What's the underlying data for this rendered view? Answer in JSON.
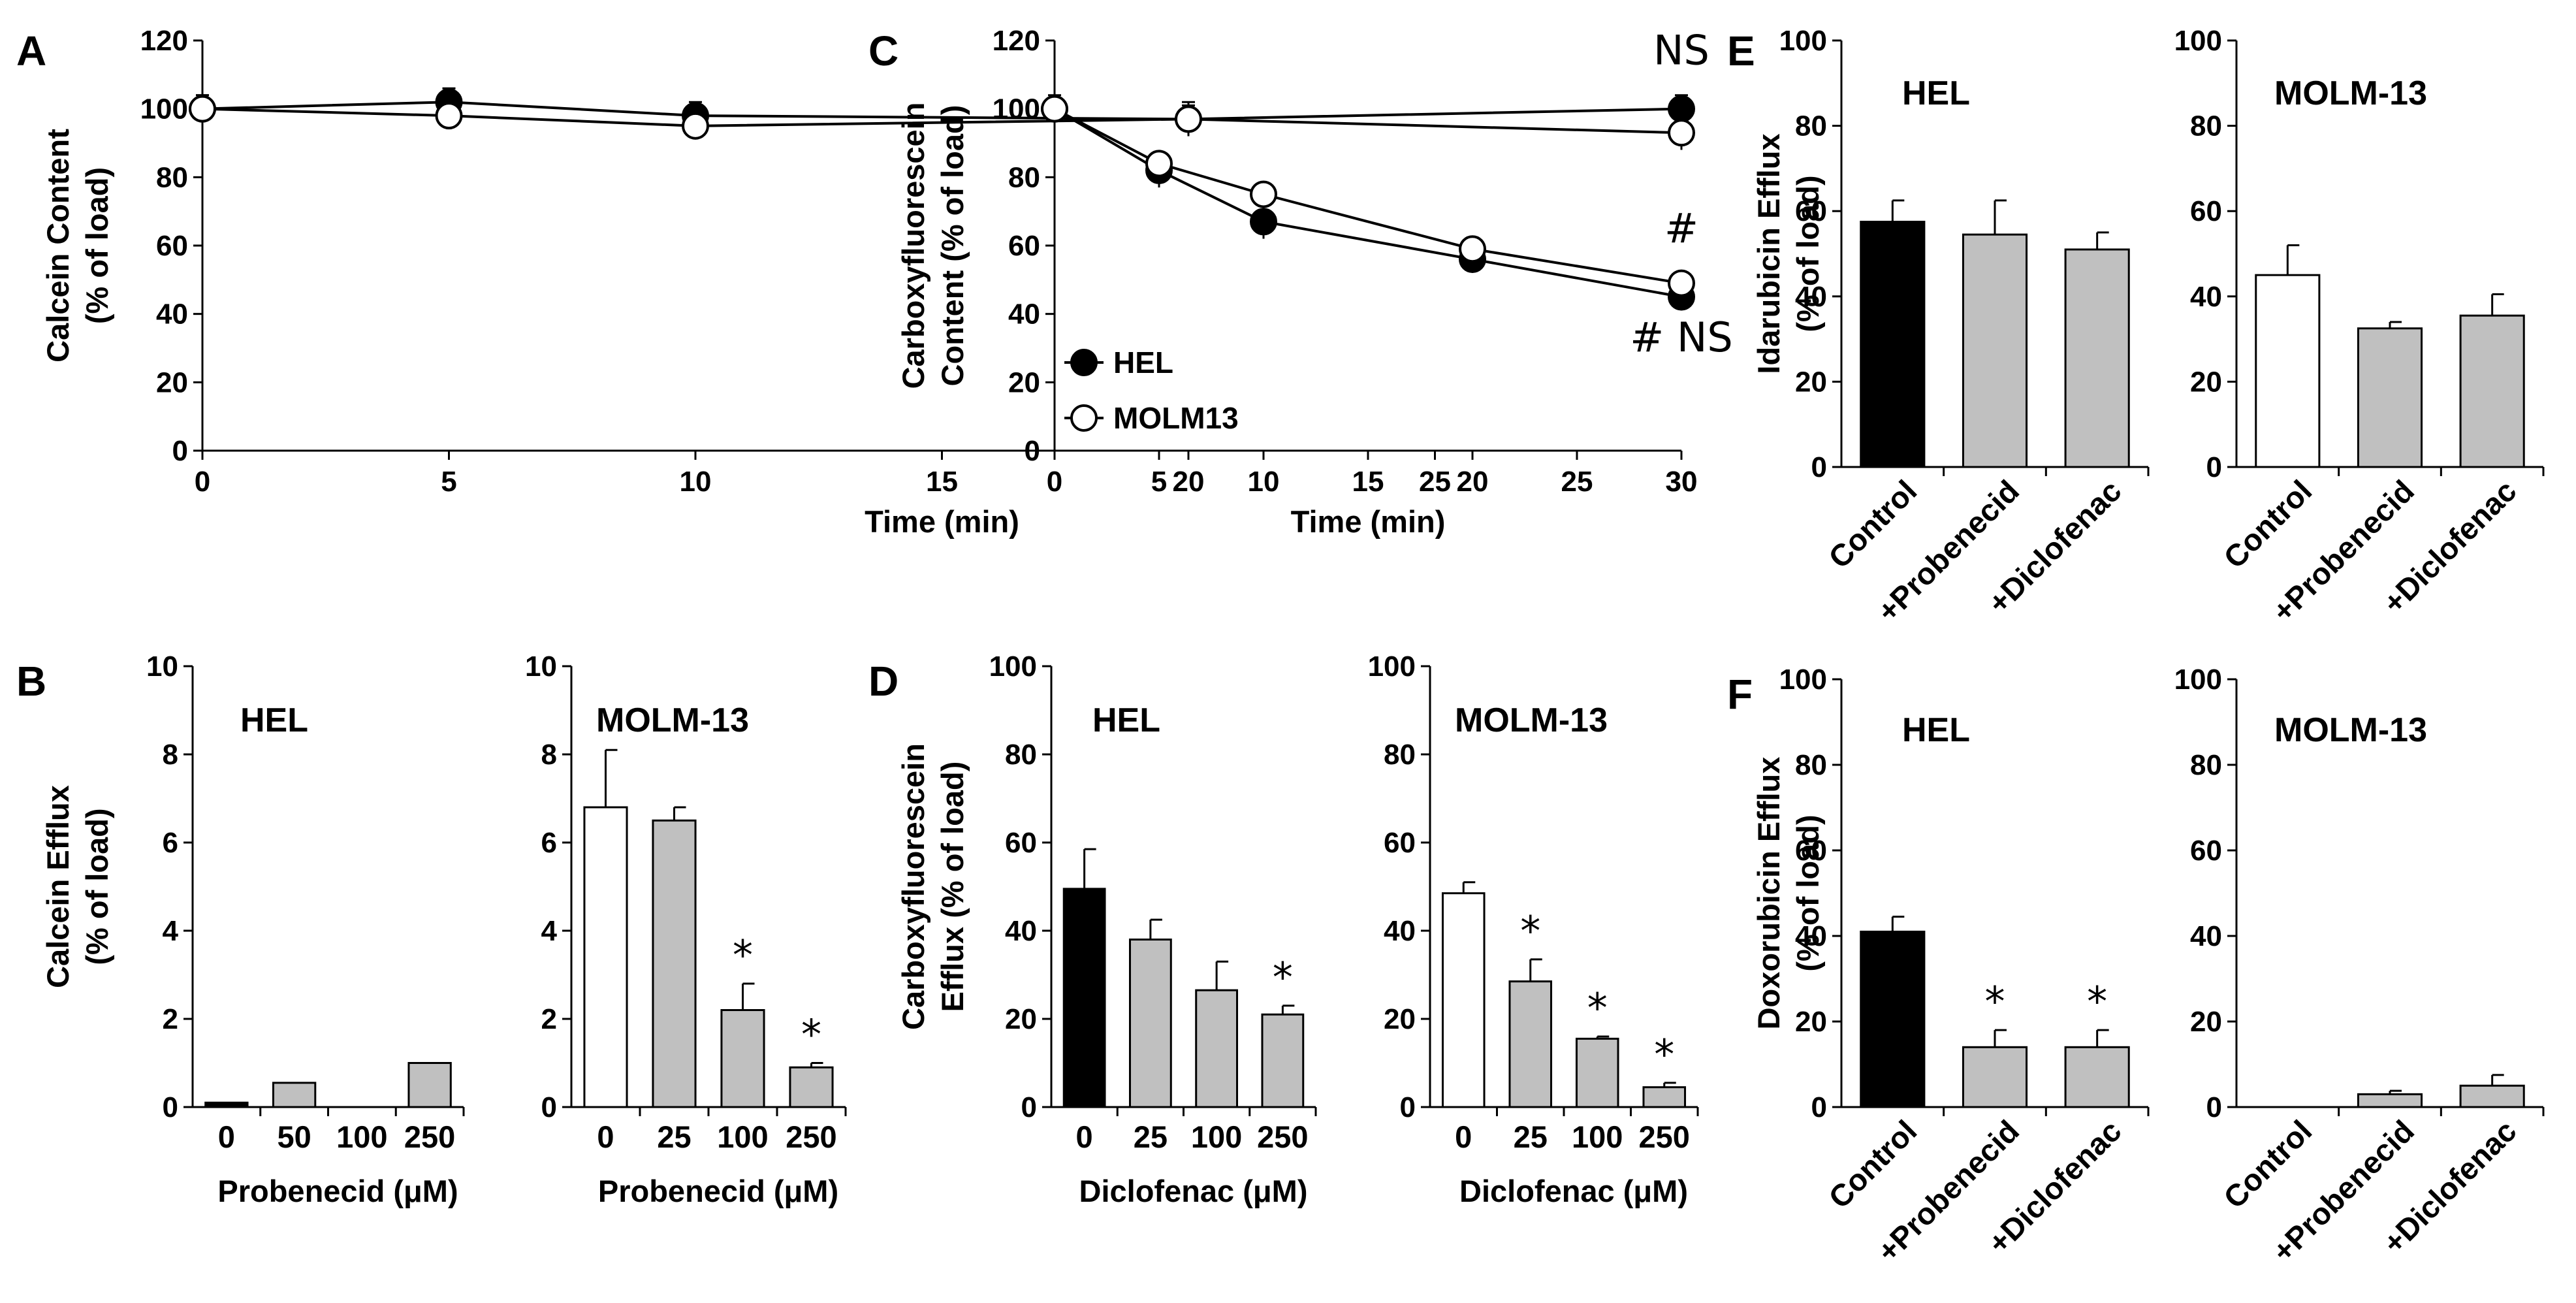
{
  "chart_data": [
    {
      "id": "A",
      "type": "line",
      "panel_label": "A",
      "xlabel": "Time (min)",
      "ylabel": [
        "Calcein Content",
        "(% of load)"
      ],
      "xlim": [
        0,
        30
      ],
      "ylim": [
        0,
        120
      ],
      "xticks": [
        0,
        5,
        10,
        15,
        20,
        25,
        30
      ],
      "yticks": [
        0,
        20,
        40,
        60,
        80,
        100,
        120
      ],
      "series": [
        {
          "name": "HEL",
          "fill": "#000000",
          "x": [
            0,
            5,
            10,
            20,
            30
          ],
          "y": [
            100,
            102,
            98,
            97,
            100
          ],
          "err": [
            4,
            4,
            4,
            4,
            4
          ]
        },
        {
          "name": "MOLM13",
          "fill": "#ffffff",
          "x": [
            0,
            5,
            10,
            20,
            30
          ],
          "y": [
            100,
            98,
            95,
            97,
            93
          ],
          "err": [
            4,
            3,
            3,
            5,
            5
          ]
        }
      ],
      "annotations": [
        {
          "text": "NS",
          "x": 30,
          "y": 113
        }
      ]
    },
    {
      "id": "C",
      "type": "line",
      "panel_label": "C",
      "xlabel": "Time (min)",
      "ylabel": [
        "Carboxyfluorescein",
        "Content (% of load)"
      ],
      "xlim": [
        0,
        30
      ],
      "ylim": [
        0,
        120
      ],
      "xticks": [
        0,
        5,
        10,
        15,
        20,
        25,
        30
      ],
      "yticks": [
        0,
        20,
        40,
        60,
        80,
        100,
        120
      ],
      "series": [
        {
          "name": "HEL",
          "fill": "#000000",
          "x": [
            0,
            5,
            10,
            20,
            30
          ],
          "y": [
            100,
            82,
            67,
            56,
            45
          ],
          "err": [
            4,
            5,
            5,
            4,
            4
          ]
        },
        {
          "name": "MOLM13",
          "fill": "#ffffff",
          "x": [
            0,
            5,
            10,
            20,
            30
          ],
          "y": [
            100,
            84,
            75,
            59,
            49
          ],
          "err": [
            3,
            3,
            3,
            3,
            3
          ]
        }
      ],
      "annotations": [
        {
          "text": "#",
          "x": 30,
          "y": 61
        },
        {
          "text": "# NS",
          "x": 30,
          "y": 29
        }
      ],
      "legend": {
        "position": "lower-left",
        "entries": [
          "HEL",
          "MOLM13"
        ]
      }
    },
    {
      "id": "B-HEL",
      "type": "bar",
      "panel_label": "B",
      "title": "HEL",
      "xlabel": "Probenecid (μM)",
      "ylabel": [
        "Calcein Efflux",
        "(% of load)"
      ],
      "ylim": [
        0,
        10
      ],
      "yticks": [
        0,
        2,
        4,
        6,
        8,
        10
      ],
      "categories": [
        "0",
        "50",
        "100",
        "250"
      ],
      "values": [
        0.1,
        0.55,
        0,
        1.0
      ],
      "err": [
        0,
        0,
        0,
        0
      ],
      "colors": [
        "#000000",
        "#c0c0c0",
        "#c0c0c0",
        "#c0c0c0"
      ],
      "sig": [
        "",
        "",
        "",
        ""
      ]
    },
    {
      "id": "B-MOLM",
      "type": "bar",
      "title": "MOLM-13",
      "xlabel": "Probenecid (μM)",
      "ylim": [
        0,
        10
      ],
      "yticks": [
        0,
        2,
        4,
        6,
        8,
        10
      ],
      "categories": [
        "0",
        "25",
        "100",
        "250"
      ],
      "values": [
        6.8,
        6.5,
        2.2,
        0.9
      ],
      "err": [
        1.3,
        0.3,
        0.6,
        0.1
      ],
      "colors": [
        "#ffffff",
        "#c0c0c0",
        "#c0c0c0",
        "#c0c0c0"
      ],
      "sig": [
        "",
        "",
        "*",
        "*"
      ]
    },
    {
      "id": "D-HEL",
      "type": "bar",
      "panel_label": "D",
      "title": "HEL",
      "xlabel": "Diclofenac (μM)",
      "ylabel": [
        "Carboxyfluorescein",
        "Efflux (% of load)"
      ],
      "ylim": [
        0,
        100
      ],
      "yticks": [
        0,
        20,
        40,
        60,
        80,
        100
      ],
      "categories": [
        "0",
        "25",
        "100",
        "250"
      ],
      "values": [
        49.5,
        38,
        26.5,
        21
      ],
      "err": [
        9,
        4.5,
        6.5,
        2
      ],
      "colors": [
        "#000000",
        "#c0c0c0",
        "#c0c0c0",
        "#c0c0c0"
      ],
      "sig": [
        "",
        "",
        "",
        "*"
      ]
    },
    {
      "id": "D-MOLM",
      "type": "bar",
      "title": "MOLM-13",
      "xlabel": "Diclofenac (μM)",
      "ylim": [
        0,
        100
      ],
      "yticks": [
        0,
        20,
        40,
        60,
        80,
        100
      ],
      "categories": [
        "0",
        "25",
        "100",
        "250"
      ],
      "values": [
        48.5,
        28.5,
        15.5,
        4.5
      ],
      "err": [
        2.5,
        5,
        0.5,
        1
      ],
      "colors": [
        "#ffffff",
        "#c0c0c0",
        "#c0c0c0",
        "#c0c0c0"
      ],
      "sig": [
        "",
        "*",
        "*",
        "*"
      ]
    },
    {
      "id": "E-HEL",
      "type": "bar",
      "panel_label": "E",
      "title": "HEL",
      "ylabel": [
        "Idarubicin Efflux",
        "(% of load)"
      ],
      "ylim": [
        0,
        100
      ],
      "yticks": [
        0,
        20,
        40,
        60,
        80,
        100
      ],
      "categories": [
        "Control",
        "+Probenecid",
        "+Diclofenac"
      ],
      "values": [
        57.5,
        54.5,
        51
      ],
      "err": [
        5,
        8,
        4
      ],
      "colors": [
        "#000000",
        "#c0c0c0",
        "#c0c0c0"
      ],
      "sig": [
        "",
        "",
        ""
      ]
    },
    {
      "id": "E-MOLM",
      "type": "bar",
      "title": "MOLM-13",
      "ylim": [
        0,
        100
      ],
      "yticks": [
        0,
        20,
        40,
        60,
        80,
        100
      ],
      "categories": [
        "Control",
        "+Probenecid",
        "+Diclofenac"
      ],
      "values": [
        45,
        32.5,
        35.5
      ],
      "err": [
        7,
        1.5,
        5
      ],
      "colors": [
        "#ffffff",
        "#c0c0c0",
        "#c0c0c0"
      ],
      "sig": [
        "",
        "",
        ""
      ]
    },
    {
      "id": "F-HEL",
      "type": "bar",
      "panel_label": "F",
      "title": "HEL",
      "ylabel": [
        "Doxorubicin Efflux",
        "(% of load)"
      ],
      "ylim": [
        0,
        100
      ],
      "yticks": [
        0,
        20,
        40,
        60,
        80,
        100
      ],
      "categories": [
        "Control",
        "+Probenecid",
        "+Diclofenac"
      ],
      "values": [
        41,
        14,
        14
      ],
      "err": [
        3.5,
        4,
        4
      ],
      "colors": [
        "#000000",
        "#c0c0c0",
        "#c0c0c0"
      ],
      "sig": [
        "",
        "*",
        "*"
      ]
    },
    {
      "id": "F-MOLM",
      "type": "bar",
      "title": "MOLM-13",
      "ylim": [
        0,
        100
      ],
      "yticks": [
        0,
        20,
        40,
        60,
        80,
        100
      ],
      "categories": [
        "Control",
        "+Probenecid",
        "+Diclofenac"
      ],
      "values": [
        0,
        3,
        5
      ],
      "err": [
        0,
        0.8,
        2.5
      ],
      "colors": [
        "#ffffff",
        "#c0c0c0",
        "#c0c0c0"
      ],
      "sig": [
        "",
        "",
        ""
      ]
    }
  ]
}
